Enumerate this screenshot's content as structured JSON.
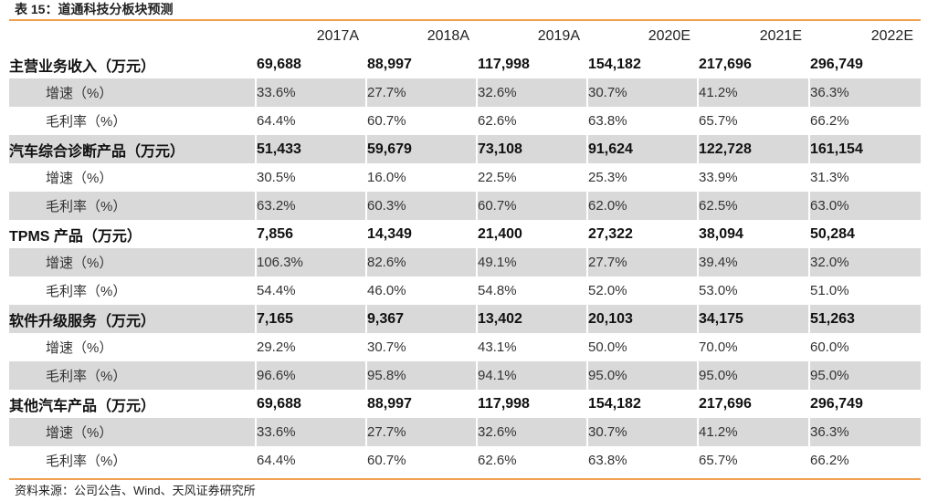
{
  "title": "表 15：道通科技分板块预测",
  "source": "资料来源：公司公告、Wind、天风证券研究所",
  "table": {
    "columns": [
      "2017A",
      "2018A",
      "2019A",
      "2020E",
      "2021E",
      "2022E"
    ],
    "rows": [
      {
        "label": "主营业务收入（万元）",
        "kind": "main",
        "shaded": false,
        "values": [
          "69,688",
          "88,997",
          "117,998",
          "154,182",
          "217,696",
          "296,749"
        ]
      },
      {
        "label": "增速（%）",
        "kind": "sub",
        "shaded": true,
        "values": [
          "33.6%",
          "27.7%",
          "32.6%",
          "30.7%",
          "41.2%",
          "36.3%"
        ]
      },
      {
        "label": "毛利率（%）",
        "kind": "sub",
        "shaded": false,
        "values": [
          "64.4%",
          "60.7%",
          "62.6%",
          "63.8%",
          "65.7%",
          "66.2%"
        ]
      },
      {
        "label": "汽车综合诊断产品（万元）",
        "kind": "main",
        "shaded": true,
        "values": [
          "51,433",
          "59,679",
          "73,108",
          "91,624",
          "122,728",
          "161,154"
        ]
      },
      {
        "label": "增速（%）",
        "kind": "sub",
        "shaded": false,
        "values": [
          "30.5%",
          "16.0%",
          "22.5%",
          "25.3%",
          "33.9%",
          "31.3%"
        ]
      },
      {
        "label": "毛利率（%）",
        "kind": "sub",
        "shaded": true,
        "values": [
          "63.2%",
          "60.3%",
          "60.7%",
          "62.0%",
          "62.5%",
          "63.0%"
        ]
      },
      {
        "label": "TPMS 产品（万元）",
        "kind": "main",
        "shaded": false,
        "values": [
          "7,856",
          "14,349",
          "21,400",
          "27,322",
          "38,094",
          "50,284"
        ]
      },
      {
        "label": "增速（%）",
        "kind": "sub",
        "shaded": true,
        "values": [
          "106.3%",
          "82.6%",
          "49.1%",
          "27.7%",
          "39.4%",
          "32.0%"
        ]
      },
      {
        "label": "毛利率（%）",
        "kind": "sub",
        "shaded": false,
        "values": [
          "54.4%",
          "46.0%",
          "54.8%",
          "52.0%",
          "53.0%",
          "51.0%"
        ]
      },
      {
        "label": "软件升级服务（万元）",
        "kind": "main",
        "shaded": true,
        "values": [
          "7,165",
          "9,367",
          "13,402",
          "20,103",
          "34,175",
          "51,263"
        ]
      },
      {
        "label": "增速（%）",
        "kind": "sub",
        "shaded": false,
        "values": [
          "29.2%",
          "30.7%",
          "43.1%",
          "50.0%",
          "70.0%",
          "60.0%"
        ]
      },
      {
        "label": "毛利率（%）",
        "kind": "sub",
        "shaded": true,
        "values": [
          "96.6%",
          "95.8%",
          "94.1%",
          "95.0%",
          "95.0%",
          "95.0%"
        ]
      },
      {
        "label": "其他汽车产品（万元）",
        "kind": "main",
        "shaded": false,
        "values": [
          "69,688",
          "88,997",
          "117,998",
          "154,182",
          "217,696",
          "296,749"
        ]
      },
      {
        "label": "增速（%）",
        "kind": "sub",
        "shaded": true,
        "values": [
          "33.6%",
          "27.7%",
          "32.6%",
          "30.7%",
          "41.2%",
          "36.3%"
        ]
      },
      {
        "label": "毛利率（%）",
        "kind": "sub",
        "shaded": false,
        "values": [
          "64.4%",
          "60.7%",
          "62.6%",
          "63.8%",
          "65.7%",
          "66.2%"
        ]
      }
    ]
  }
}
